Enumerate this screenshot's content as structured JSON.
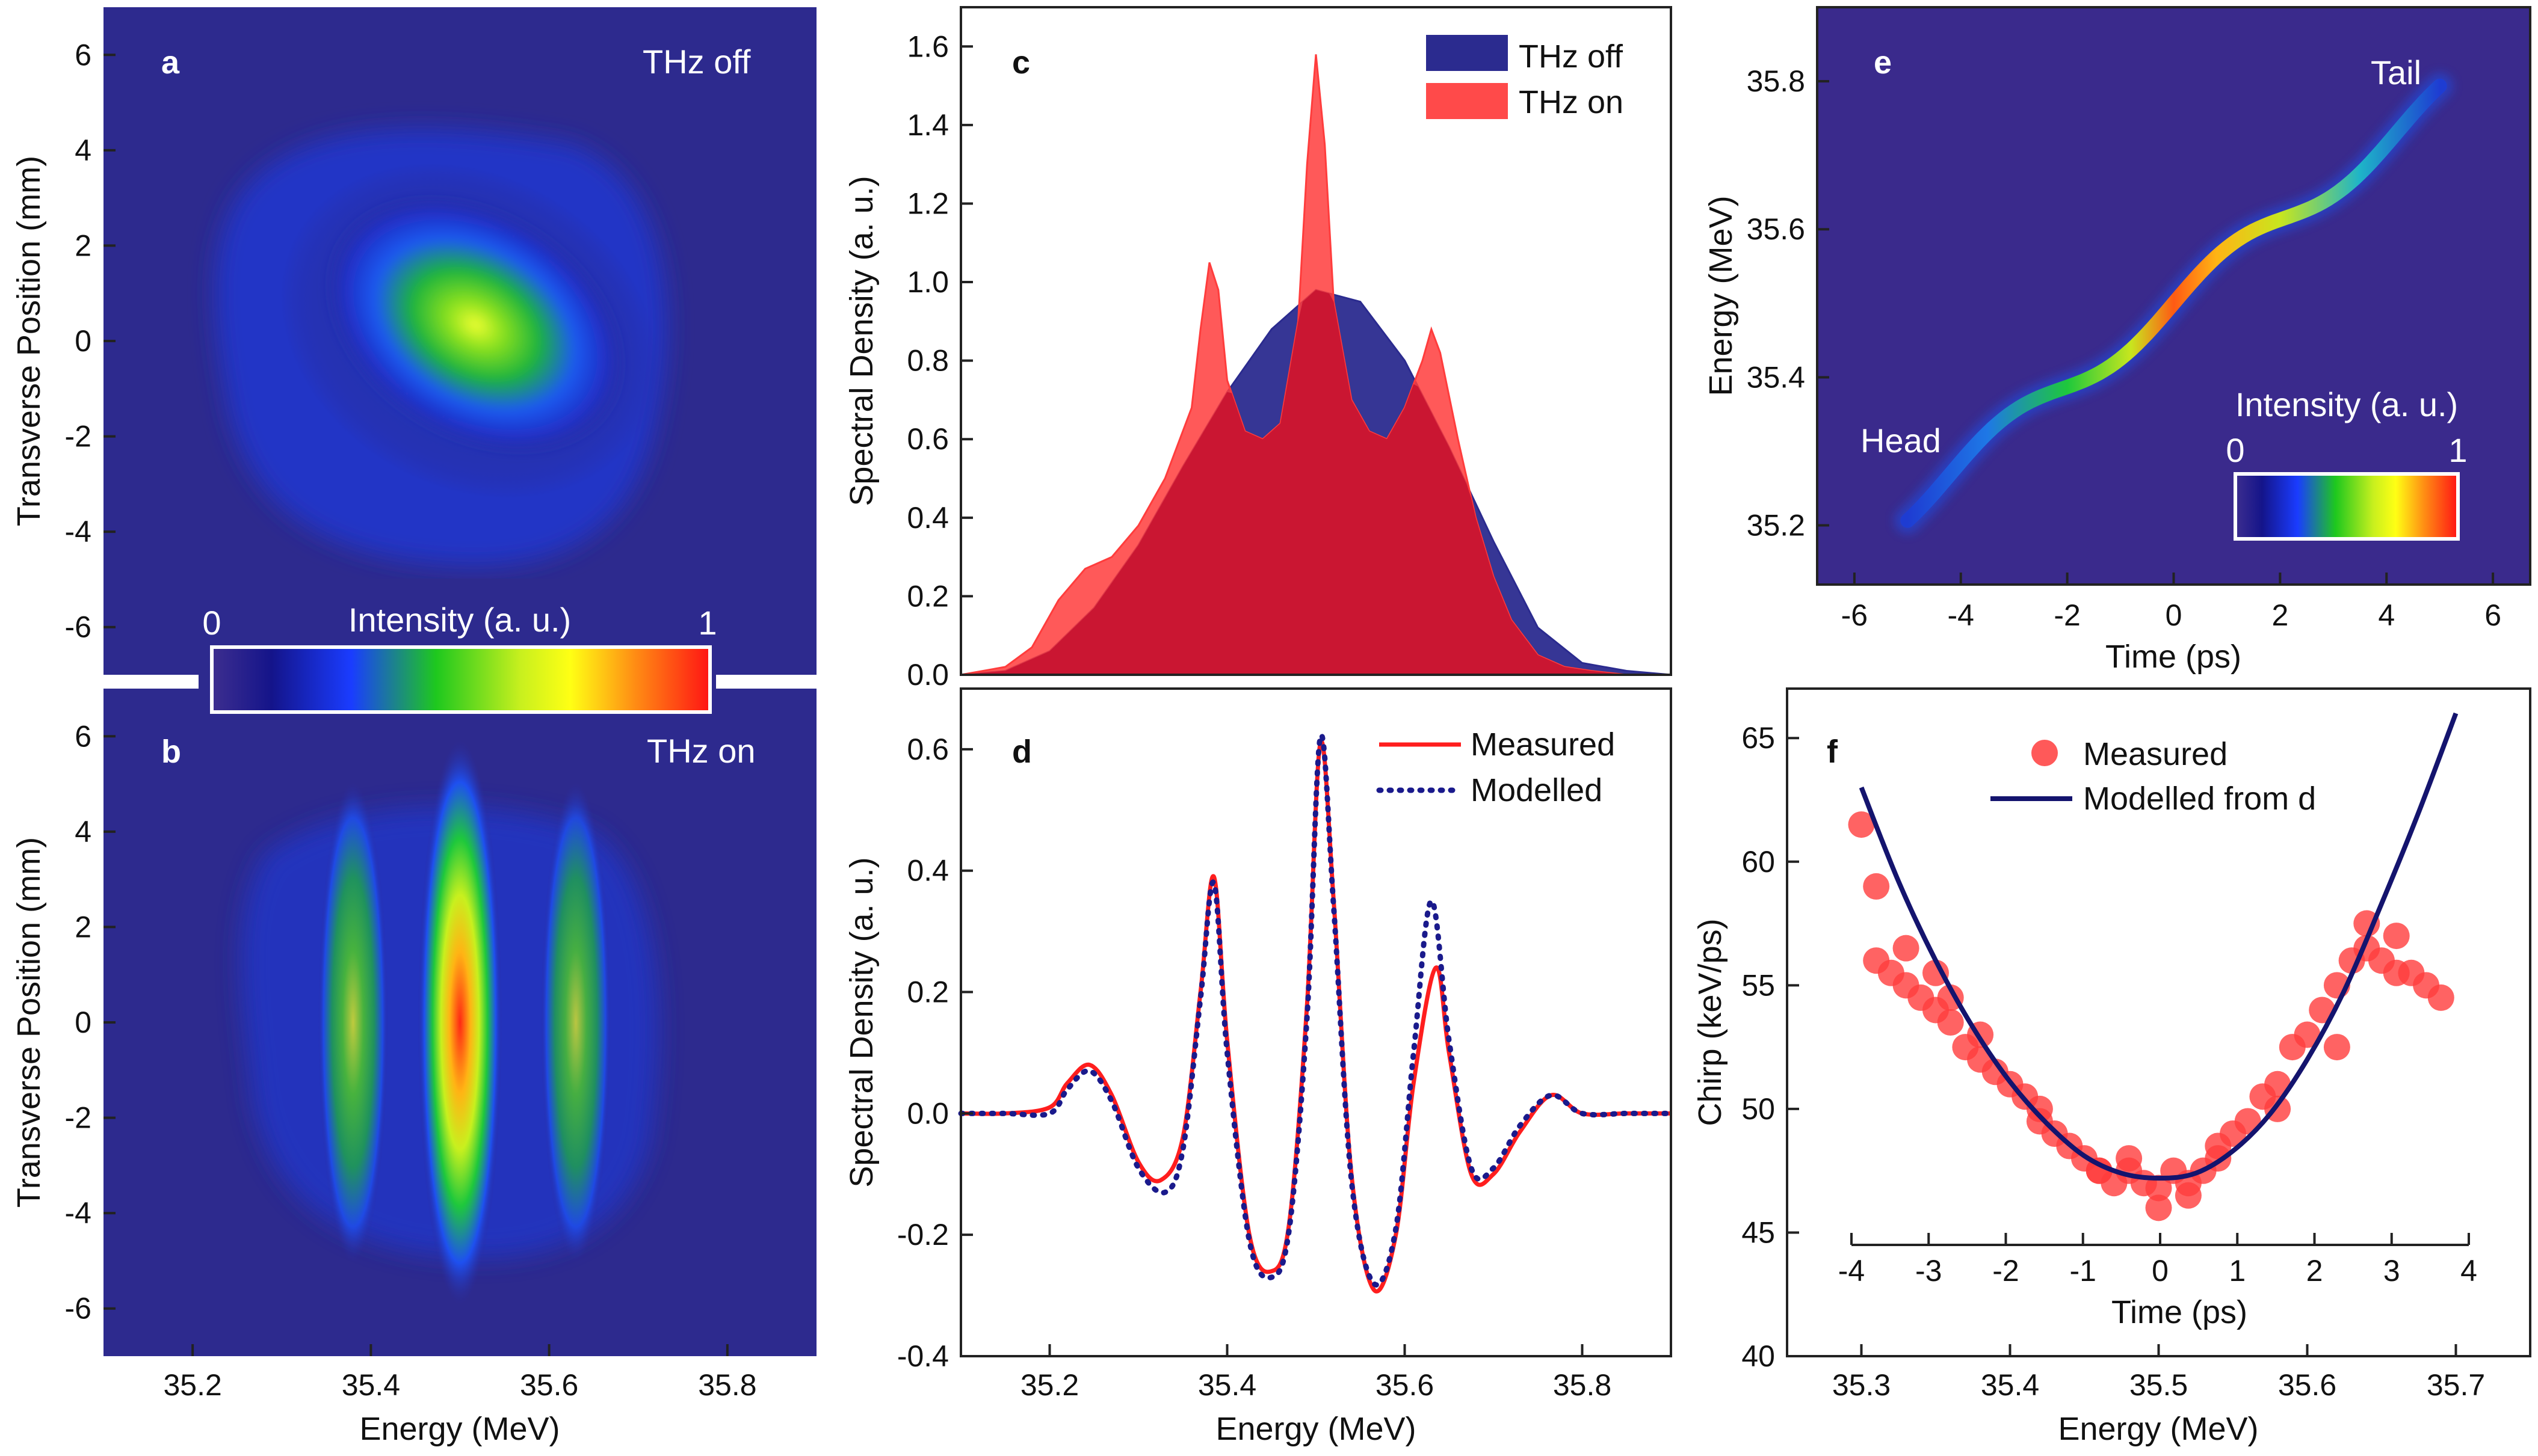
{
  "chart_data": [
    {
      "panel": "a",
      "type": "heatmap",
      "annotation": "THz off",
      "xlabel": "Energy (MeV)",
      "ylabel": "Transverse Position (mm)",
      "xlim": [
        35.1,
        35.9
      ],
      "ylim": [
        -7,
        7
      ],
      "xticks": [
        "35.2",
        "35.4",
        "35.6",
        "35.8"
      ],
      "yticks": [
        "6",
        "4",
        "2",
        "0",
        "-2",
        "-4",
        "-6"
      ],
      "blob": {
        "center_energy": 35.5,
        "center_position": 0.3,
        "width_energy": 0.16,
        "width_position": 3.2
      },
      "colorbar": {
        "label": "Intensity (a. u.)",
        "min": "0",
        "max": "1"
      }
    },
    {
      "panel": "b",
      "type": "heatmap",
      "annotation": "THz on",
      "xlabel": "Energy (MeV)",
      "ylabel": "Transverse Position (mm)",
      "xlim": [
        35.1,
        35.9
      ],
      "ylim": [
        -7,
        7
      ],
      "xticks": [
        "35.2",
        "35.4",
        "35.6",
        "35.8"
      ],
      "yticks": [
        "6",
        "4",
        "2",
        "0",
        "-2",
        "-4",
        "-6"
      ],
      "bands": [
        {
          "energy": 35.38,
          "intensity": 0.6
        },
        {
          "energy": 35.5,
          "intensity": 1.0
        },
        {
          "energy": 35.63,
          "intensity": 0.55
        }
      ]
    },
    {
      "panel": "c",
      "type": "area",
      "xlabel": "Energy (MeV)",
      "ylabel": "Spectral Density (a. u.)",
      "xlim": [
        35.1,
        35.9
      ],
      "ylim": [
        0,
        1.7
      ],
      "xticks": [
        "35.2",
        "35.4",
        "35.6",
        "35.8"
      ],
      "yticks": [
        "0.0",
        "0.2",
        "0.4",
        "0.6",
        "0.8",
        "1.0",
        "1.2",
        "1.4",
        "1.6"
      ],
      "series": [
        {
          "name": "THz off",
          "color": "#2b2b8f",
          "x": [
            35.1,
            35.15,
            35.2,
            35.25,
            35.3,
            35.35,
            35.4,
            35.45,
            35.5,
            35.55,
            35.6,
            35.65,
            35.7,
            35.75,
            35.8,
            35.85,
            35.9
          ],
          "values": [
            0.0,
            0.01,
            0.06,
            0.17,
            0.33,
            0.53,
            0.72,
            0.88,
            0.98,
            0.95,
            0.8,
            0.58,
            0.34,
            0.12,
            0.03,
            0.01,
            0.0
          ]
        },
        {
          "name": "THz on",
          "color": "#ff3c3c",
          "x": [
            35.1,
            35.15,
            35.18,
            35.21,
            35.24,
            35.27,
            35.3,
            35.33,
            35.36,
            35.37,
            35.38,
            35.39,
            35.4,
            35.42,
            35.44,
            35.46,
            35.48,
            35.49,
            35.5,
            35.51,
            35.52,
            35.54,
            35.56,
            35.58,
            35.6,
            35.62,
            35.63,
            35.64,
            35.66,
            35.68,
            35.7,
            35.72,
            35.75,
            35.78,
            35.81,
            35.85,
            35.9
          ],
          "values": [
            0.0,
            0.02,
            0.07,
            0.19,
            0.27,
            0.3,
            0.38,
            0.5,
            0.68,
            0.88,
            1.05,
            0.98,
            0.75,
            0.62,
            0.6,
            0.64,
            0.9,
            1.3,
            1.58,
            1.35,
            0.95,
            0.7,
            0.62,
            0.6,
            0.68,
            0.8,
            0.88,
            0.82,
            0.6,
            0.4,
            0.25,
            0.14,
            0.05,
            0.02,
            0.01,
            0.0,
            0.0
          ]
        }
      ]
    },
    {
      "panel": "d",
      "type": "line",
      "xlabel": "Energy (MeV)",
      "ylabel": "Spectral Density (a. u.)",
      "xlim": [
        35.1,
        35.9
      ],
      "ylim": [
        -0.4,
        0.7
      ],
      "xticks": [
        "35.2",
        "35.4",
        "35.6",
        "35.8"
      ],
      "yticks": [
        "-0.4",
        "-0.2",
        "0.0",
        "0.2",
        "0.4",
        "0.6"
      ],
      "series": [
        {
          "name": "Measured",
          "color": "#ff1e1e",
          "style": "solid",
          "x": [
            35.1,
            35.15,
            35.2,
            35.22,
            35.245,
            35.27,
            35.3,
            35.325,
            35.35,
            35.37,
            35.385,
            35.4,
            35.425,
            35.45,
            35.47,
            35.49,
            35.505,
            35.52,
            35.54,
            35.565,
            35.59,
            35.61,
            35.635,
            35.65,
            35.675,
            35.7,
            35.73,
            35.765,
            35.8,
            35.85,
            35.9
          ],
          "values": [
            0.0,
            0.0,
            0.01,
            0.05,
            0.08,
            0.03,
            -0.08,
            -0.11,
            -0.04,
            0.2,
            0.39,
            0.12,
            -0.2,
            -0.26,
            -0.18,
            0.18,
            0.61,
            0.35,
            -0.1,
            -0.29,
            -0.2,
            0.05,
            0.24,
            0.1,
            -0.1,
            -0.1,
            -0.03,
            0.03,
            0.0,
            0.0,
            0.0
          ]
        },
        {
          "name": "Modelled",
          "color": "#1a1a8c",
          "style": "dotted",
          "x": [
            35.1,
            35.15,
            35.2,
            35.22,
            35.245,
            35.27,
            35.3,
            35.33,
            35.35,
            35.37,
            35.385,
            35.4,
            35.425,
            35.45,
            35.47,
            35.49,
            35.505,
            35.52,
            35.54,
            35.565,
            35.59,
            35.61,
            35.63,
            35.65,
            35.675,
            35.7,
            35.73,
            35.765,
            35.8,
            35.85,
            35.9
          ],
          "values": [
            0.0,
            0.0,
            0.0,
            0.04,
            0.07,
            0.02,
            -0.09,
            -0.13,
            -0.06,
            0.19,
            0.38,
            0.1,
            -0.21,
            -0.27,
            -0.19,
            0.16,
            0.62,
            0.34,
            -0.11,
            -0.28,
            -0.19,
            0.1,
            0.35,
            0.12,
            -0.09,
            -0.09,
            -0.02,
            0.03,
            0.0,
            0.0,
            0.0
          ]
        }
      ]
    },
    {
      "panel": "e",
      "type": "heatmap",
      "xlabel": "Time (ps)",
      "ylabel": "Energy (MeV)",
      "xlim": [
        -6.7,
        6.7
      ],
      "ylim": [
        35.12,
        35.9
      ],
      "xticks": [
        "-6",
        "-4",
        "-2",
        "0",
        "2",
        "4",
        "6"
      ],
      "yticks": [
        "35.8",
        "35.6",
        "35.4",
        "35.2"
      ],
      "annotations": {
        "head": "Head",
        "tail": "Tail"
      },
      "colorbar": {
        "label": "Intensity (a. u.)",
        "min": "0",
        "max": "1"
      },
      "trajectory": {
        "t_start": -5.0,
        "t_end": 5.0,
        "e_center": 35.5,
        "slope": 0.055,
        "wiggle": 0.02
      }
    },
    {
      "panel": "f",
      "type": "scatter",
      "xlabel": "Energy (MeV)",
      "ylabel": "Chirp (keV/ps)",
      "xlim": [
        35.25,
        35.75
      ],
      "ylim": [
        40,
        67
      ],
      "xticks": [
        "35.3",
        "35.4",
        "35.5",
        "35.6",
        "35.7"
      ],
      "yticks": [
        "40",
        "45",
        "50",
        "55",
        "60",
        "65"
      ],
      "top_axis": {
        "label": "Time (ps)",
        "range": [
          -4,
          4
        ],
        "ticks": [
          "-4",
          "-3",
          "-2",
          "-1",
          "0",
          "1",
          "2",
          "3",
          "4"
        ]
      },
      "series": [
        {
          "name": "Measured",
          "color": "#ff3c3c",
          "kind": "scatter",
          "x": [
            35.3,
            35.31,
            35.32,
            35.33,
            35.34,
            35.35,
            35.36,
            35.37,
            35.38,
            35.39,
            35.4,
            35.41,
            35.42,
            35.43,
            35.44,
            35.45,
            35.46,
            35.47,
            35.48,
            35.49,
            35.5,
            35.51,
            35.52,
            35.53,
            35.54,
            35.55,
            35.56,
            35.57,
            35.58,
            35.59,
            35.6,
            35.61,
            35.62,
            35.63,
            35.64,
            35.65,
            35.66,
            35.67,
            35.68,
            35.69,
            35.31,
            35.33,
            35.35,
            35.38,
            35.42,
            35.46,
            35.5,
            35.54,
            35.58,
            35.62,
            35.66,
            35.48,
            35.52,
            35.36,
            35.64
          ],
          "values": [
            61.5,
            56.0,
            55.5,
            55.0,
            54.5,
            54.0,
            53.5,
            52.5,
            52.0,
            51.5,
            51.0,
            50.5,
            50.0,
            49.0,
            48.5,
            48.0,
            47.5,
            47.0,
            47.5,
            47.0,
            46.8,
            47.5,
            47.0,
            47.5,
            48.5,
            49.0,
            49.5,
            50.5,
            51.0,
            52.5,
            53.0,
            54.0,
            55.0,
            56.0,
            56.5,
            56.0,
            57.0,
            55.5,
            55.0,
            54.5,
            59.0,
            56.5,
            55.5,
            53.0,
            49.5,
            47.5,
            46.0,
            48.0,
            50.0,
            52.5,
            55.5,
            48.0,
            46.5,
            54.5,
            57.5
          ]
        },
        {
          "name": "Modelled from d",
          "color": "#14146e",
          "kind": "line",
          "x": [
            35.3,
            35.325,
            35.35,
            35.375,
            35.4,
            35.425,
            35.45,
            35.475,
            35.5,
            35.525,
            35.55,
            35.575,
            35.6,
            35.625,
            35.65,
            35.675,
            35.7
          ],
          "values": [
            63.0,
            59.2,
            56.0,
            53.3,
            51.1,
            49.4,
            48.1,
            47.4,
            47.2,
            47.4,
            48.3,
            49.8,
            52.0,
            54.8,
            58.3,
            62.0,
            66.0
          ]
        }
      ]
    }
  ]
}
